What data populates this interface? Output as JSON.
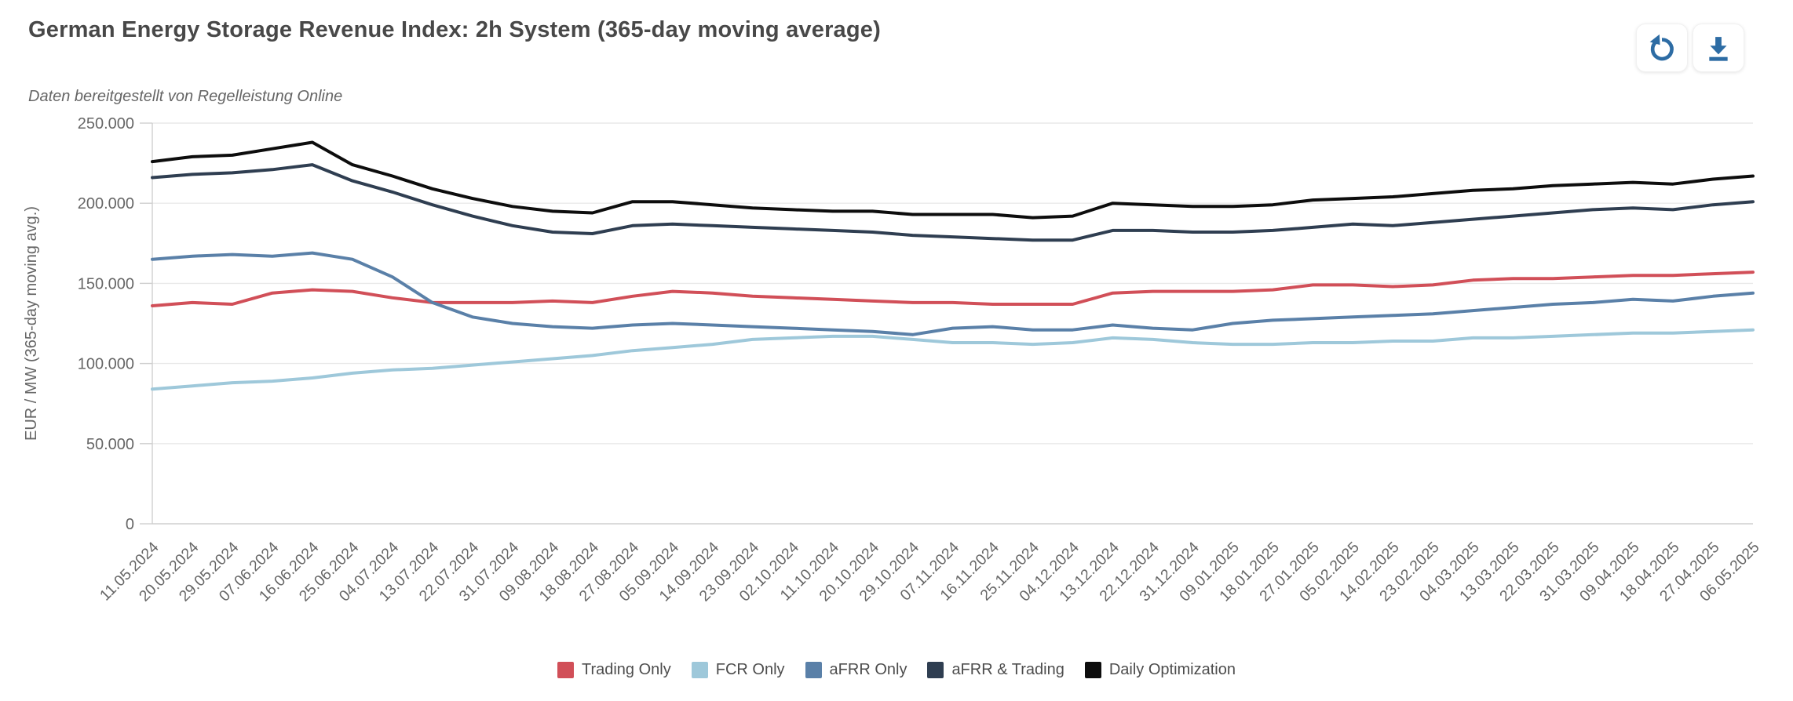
{
  "header": {
    "title": "German Energy Storage Revenue Index: 2h System (365-day moving average)",
    "subtitle": "Daten bereitgestellt von Regelleistung Online",
    "buttons": [
      {
        "name": "reset-zoom",
        "icon": "refresh-icon"
      },
      {
        "name": "download",
        "icon": "download-icon"
      }
    ],
    "icon_color": "#2d6ca4"
  },
  "colors": {
    "grid": "#e9e9e9",
    "axis": "#cfcfcf",
    "tick_text": "#666666",
    "title_text": "#484848",
    "legend_text": "#4d4d4d"
  },
  "chart_data": {
    "type": "line",
    "title": "German Energy Storage Revenue Index: 2h System (365-day moving average)",
    "subtitle": "Daten bereitgestellt von Regelleistung Online",
    "xlabel": "",
    "ylabel": "EUR / MW (365-day moving avg.)",
    "ylim": [
      0,
      250000
    ],
    "yticks": [
      0,
      50000,
      100000,
      150000,
      200000,
      250000
    ],
    "ytick_labels": [
      "0",
      "50.000",
      "100.000",
      "150.000",
      "200.000",
      "250.000"
    ],
    "grid": true,
    "legend_position": "bottom",
    "categories": [
      "11.05.2024",
      "20.05.2024",
      "29.05.2024",
      "07.06.2024",
      "16.06.2024",
      "25.06.2024",
      "04.07.2024",
      "13.07.2024",
      "22.07.2024",
      "31.07.2024",
      "09.08.2024",
      "18.08.2024",
      "27.08.2024",
      "05.09.2024",
      "14.09.2024",
      "23.09.2024",
      "02.10.2024",
      "11.10.2024",
      "20.10.2024",
      "29.10.2024",
      "07.11.2024",
      "16.11.2024",
      "25.11.2024",
      "04.12.2024",
      "13.12.2024",
      "22.12.2024",
      "31.12.2024",
      "09.01.2025",
      "18.01.2025",
      "27.01.2025",
      "05.02.2025",
      "14.02.2025",
      "23.02.2025",
      "04.03.2025",
      "13.03.2025",
      "22.03.2025",
      "31.03.2025",
      "09.04.2025",
      "18.04.2025",
      "27.04.2025",
      "06.05.2025"
    ],
    "series": [
      {
        "name": "Trading Only",
        "color": "#d14f58",
        "values": [
          136000,
          138000,
          137000,
          144000,
          146000,
          145000,
          141000,
          138000,
          138000,
          138000,
          139000,
          138000,
          142000,
          145000,
          144000,
          142000,
          141000,
          140000,
          139000,
          138000,
          138000,
          137000,
          137000,
          137000,
          144000,
          145000,
          145000,
          145000,
          146000,
          149000,
          149000,
          148000,
          149000,
          152000,
          153000,
          153000,
          154000,
          155000,
          155000,
          156000,
          157000
        ]
      },
      {
        "name": "FCR Only",
        "color": "#9ec8da",
        "values": [
          84000,
          86000,
          88000,
          89000,
          91000,
          94000,
          96000,
          97000,
          99000,
          101000,
          103000,
          105000,
          108000,
          110000,
          112000,
          115000,
          116000,
          117000,
          117000,
          115000,
          113000,
          113000,
          112000,
          113000,
          116000,
          115000,
          113000,
          112000,
          112000,
          113000,
          113000,
          114000,
          114000,
          116000,
          116000,
          117000,
          118000,
          119000,
          119000,
          120000,
          121000
        ]
      },
      {
        "name": "aFRR Only",
        "color": "#5a80a8",
        "values": [
          165000,
          167000,
          168000,
          167000,
          169000,
          165000,
          154000,
          138000,
          129000,
          125000,
          123000,
          122000,
          124000,
          125000,
          124000,
          123000,
          122000,
          121000,
          120000,
          118000,
          122000,
          123000,
          121000,
          121000,
          124000,
          122000,
          121000,
          125000,
          127000,
          128000,
          129000,
          130000,
          131000,
          133000,
          135000,
          137000,
          138000,
          140000,
          139000,
          142000,
          144000
        ]
      },
      {
        "name": "aFRR & Trading",
        "color": "#2f3e51",
        "values": [
          216000,
          218000,
          219000,
          221000,
          224000,
          214000,
          207000,
          199000,
          192000,
          186000,
          182000,
          181000,
          186000,
          187000,
          186000,
          185000,
          184000,
          183000,
          182000,
          180000,
          179000,
          178000,
          177000,
          177000,
          183000,
          183000,
          182000,
          182000,
          183000,
          185000,
          187000,
          186000,
          188000,
          190000,
          192000,
          194000,
          196000,
          197000,
          196000,
          199000,
          201000
        ]
      },
      {
        "name": "Daily Optimization",
        "color": "#0d0d0d",
        "values": [
          226000,
          229000,
          230000,
          234000,
          238000,
          224000,
          217000,
          209000,
          203000,
          198000,
          195000,
          194000,
          201000,
          201000,
          199000,
          197000,
          196000,
          195000,
          195000,
          193000,
          193000,
          193000,
          191000,
          192000,
          200000,
          199000,
          198000,
          198000,
          199000,
          202000,
          203000,
          204000,
          206000,
          208000,
          209000,
          211000,
          212000,
          213000,
          212000,
          215000,
          217000
        ]
      }
    ]
  }
}
